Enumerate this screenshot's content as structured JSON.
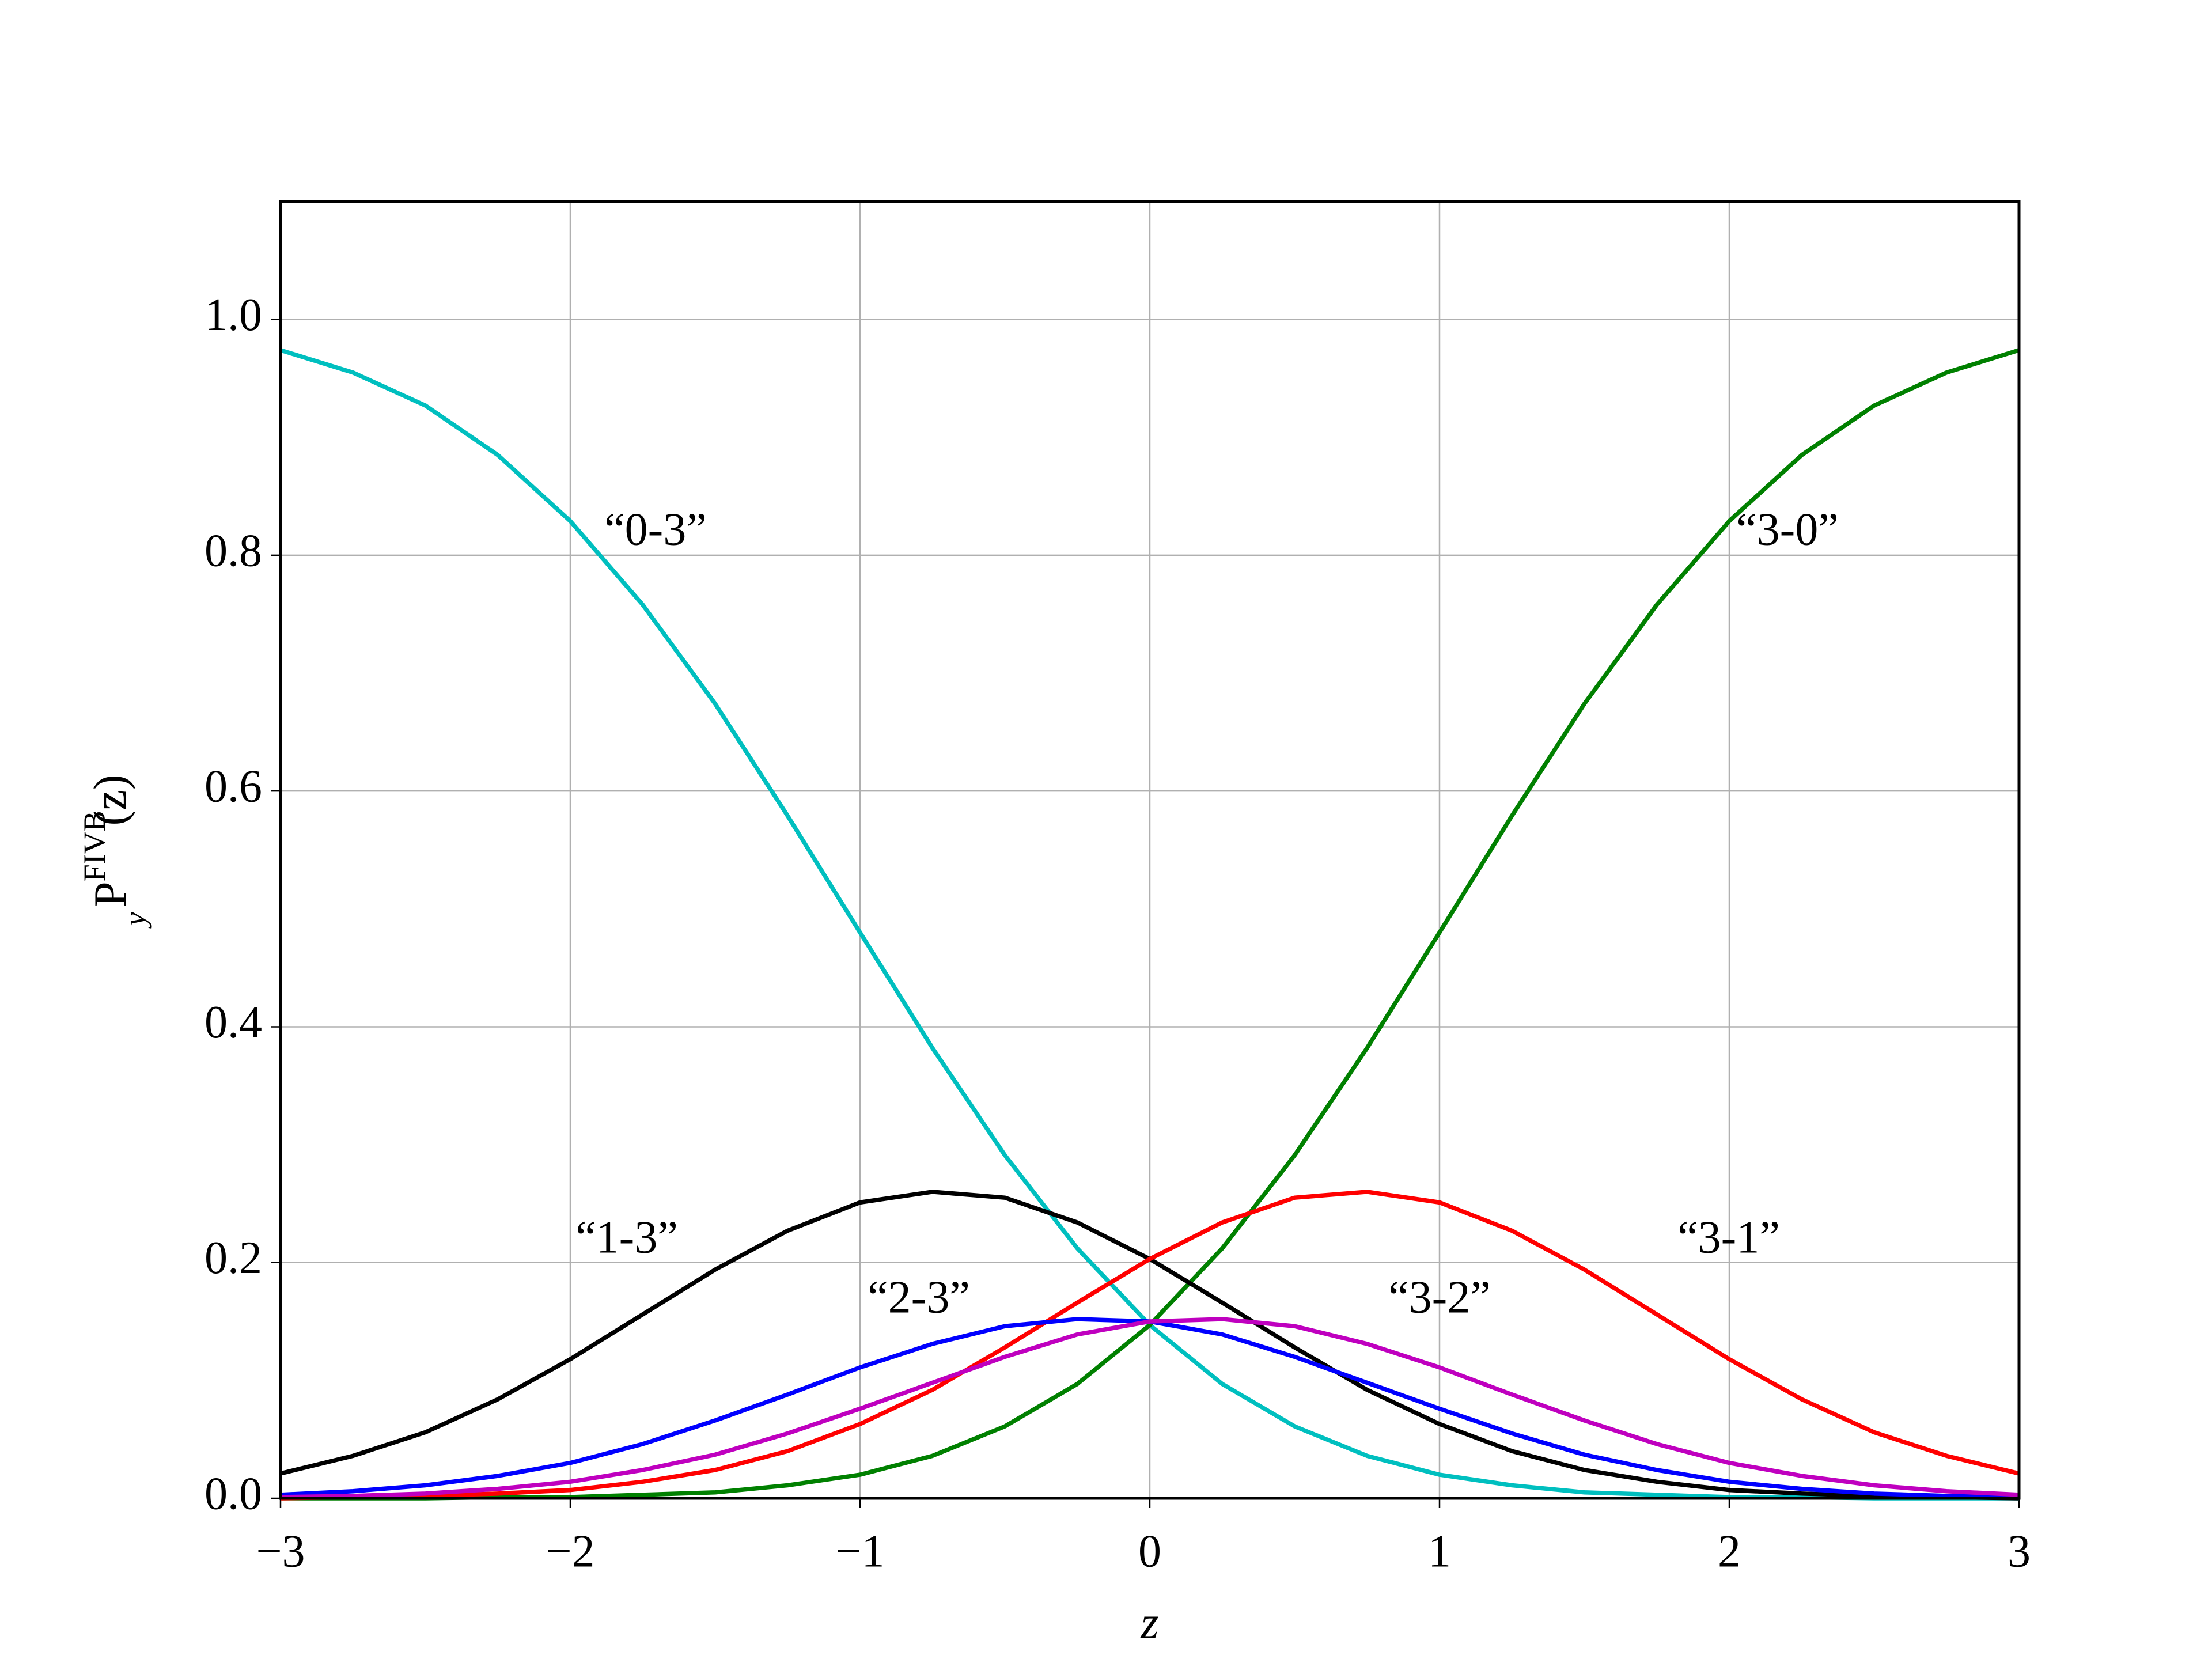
{
  "chart_data": {
    "type": "line",
    "xlabel": "z",
    "ylabel": {
      "base": "P",
      "sup": "FIVB",
      "sub": "y",
      "arg": "(z)"
    },
    "x": [
      -3,
      -2.75,
      -2.5,
      -2.25,
      -2,
      -1.75,
      -1.5,
      -1.25,
      -1,
      -0.75,
      -0.5,
      -0.25,
      0,
      0.25,
      0.5,
      0.75,
      1,
      1.25,
      1.5,
      1.75,
      2,
      2.25,
      2.5,
      2.75,
      3
    ],
    "series": [
      {
        "name": "“0-3”",
        "color": "#00bfbf",
        "values": [
          0.974,
          0.955,
          0.927,
          0.885,
          0.829,
          0.758,
          0.674,
          0.579,
          0.48,
          0.382,
          0.291,
          0.212,
          0.147,
          0.097,
          0.061,
          0.036,
          0.02,
          0.011,
          0.005,
          0.003,
          0.001,
          0.001,
          0.0,
          0.0,
          0.0
        ]
      },
      {
        "name": "“3-0”",
        "color": "#008000",
        "values": [
          0.0,
          0.0,
          0.0,
          0.001,
          0.001,
          0.003,
          0.005,
          0.011,
          0.02,
          0.036,
          0.061,
          0.097,
          0.147,
          0.212,
          0.291,
          0.382,
          0.48,
          0.579,
          0.674,
          0.758,
          0.829,
          0.885,
          0.927,
          0.955,
          0.974
        ]
      },
      {
        "name": "“1-3”",
        "color": "#000000",
        "values": [
          0.021,
          0.036,
          0.056,
          0.084,
          0.118,
          0.156,
          0.194,
          0.227,
          0.251,
          0.26,
          0.255,
          0.234,
          0.203,
          0.166,
          0.128,
          0.092,
          0.063,
          0.04,
          0.024,
          0.014,
          0.007,
          0.004,
          0.002,
          0.001,
          0.0
        ]
      },
      {
        "name": "“3-1”",
        "color": "#ff0000",
        "values": [
          0.0,
          0.001,
          0.002,
          0.004,
          0.007,
          0.014,
          0.024,
          0.04,
          0.063,
          0.092,
          0.128,
          0.166,
          0.203,
          0.234,
          0.255,
          0.26,
          0.251,
          0.227,
          0.194,
          0.156,
          0.118,
          0.084,
          0.056,
          0.036,
          0.021
        ]
      },
      {
        "name": "“2-3”",
        "color": "#0000ff",
        "values": [
          0.003,
          0.006,
          0.011,
          0.019,
          0.03,
          0.046,
          0.066,
          0.088,
          0.111,
          0.131,
          0.146,
          0.152,
          0.15,
          0.139,
          0.12,
          0.098,
          0.076,
          0.055,
          0.037,
          0.024,
          0.014,
          0.008,
          0.004,
          0.002,
          0.001
        ]
      },
      {
        "name": "“3-2”",
        "color": "#bf00bf",
        "values": [
          0.001,
          0.002,
          0.004,
          0.008,
          0.014,
          0.024,
          0.037,
          0.055,
          0.076,
          0.098,
          0.12,
          0.139,
          0.15,
          0.152,
          0.146,
          0.131,
          0.111,
          0.088,
          0.066,
          0.046,
          0.03,
          0.019,
          0.011,
          0.006,
          0.003
        ]
      }
    ],
    "xlim": [
      -3,
      3
    ],
    "xticks": [
      {
        "value": -3,
        "label": "−3"
      },
      {
        "value": -2,
        "label": "−2"
      },
      {
        "value": -1,
        "label": "−1"
      },
      0,
      1,
      2,
      3
    ],
    "ylim": [
      0,
      1.1
    ],
    "yticks": [
      {
        "value": 0,
        "label": "0.0"
      },
      0.2,
      0.4,
      0.6,
      0.8,
      {
        "value": 1,
        "label": "1.0"
      }
    ],
    "grid": true
  }
}
